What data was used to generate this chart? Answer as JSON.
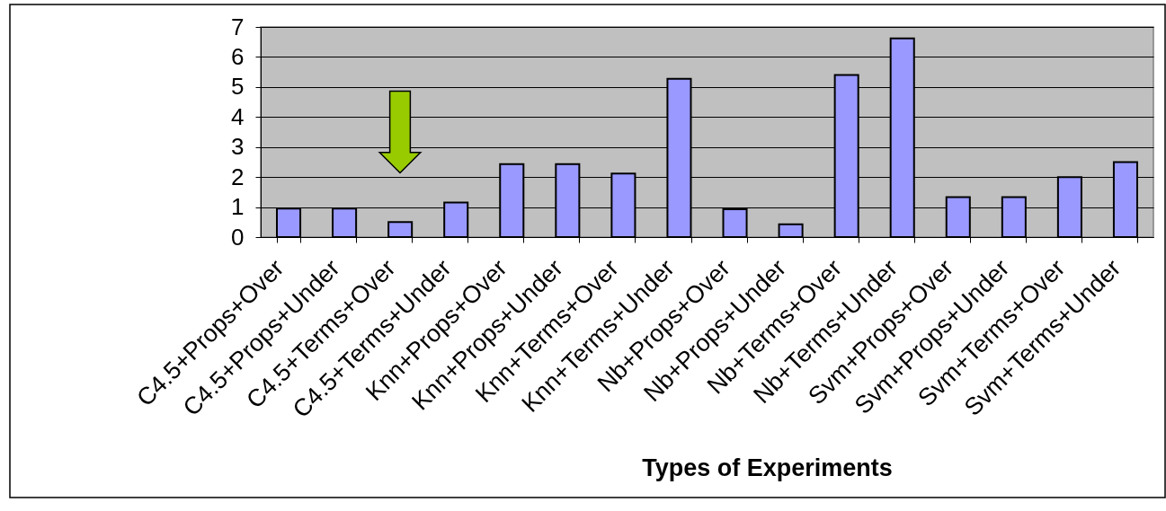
{
  "chart_data": {
    "type": "bar",
    "xlabel": "Types of Experiments",
    "categories": [
      "C4.5+Props+Over",
      "C4.5+Props+Under",
      "C4.5+Terms+Over",
      "C4.5+Terms+Under",
      "Knn+Props+Over",
      "Knn+Props+Under",
      "Knn+Terms+Over",
      "Knn+Terms+Under",
      "Nb+Props+Over",
      "Nb+Props+Under",
      "Nb+Terms+Over",
      "Nb+Terms+Under",
      "Svm+Props+Over",
      "Svm+Props+Under",
      "Svm+Terms+Over",
      "Svm+Terms+Under"
    ],
    "values": [
      0.95,
      0.95,
      0.5,
      1.15,
      2.43,
      2.43,
      2.12,
      5.27,
      0.93,
      0.43,
      5.4,
      6.62,
      1.33,
      1.33,
      2.0,
      2.5
    ],
    "color": "#9999ff",
    "ylim": [
      0,
      7
    ],
    "yticks": [
      0,
      1,
      2,
      3,
      4,
      5,
      6,
      7
    ],
    "grid": "y"
  }
}
